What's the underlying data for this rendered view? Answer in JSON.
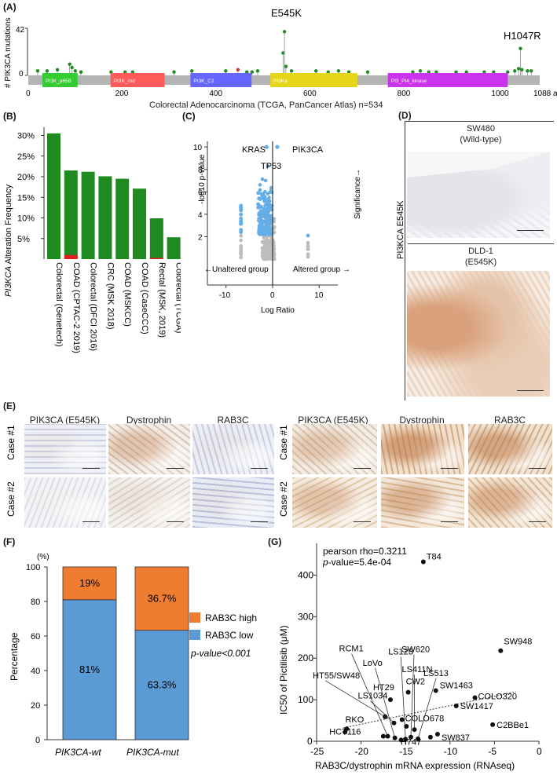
{
  "panelA": {
    "label": "(A)",
    "ylabel": "# PIK3CA mutations",
    "ymax": "42",
    "ymin": "0",
    "hotspot1": "E545K",
    "hotspot2": "H1047R",
    "xticks": [
      "0",
      "200",
      "400",
      "600",
      "800",
      "1000",
      "1088 a.a"
    ],
    "domains": [
      {
        "name": "PI3K_p85B",
        "color": "#33cc33",
        "start": 30,
        "end": 105
      },
      {
        "name": "PI3K_rbd",
        "color": "#ff5a5a",
        "start": 175,
        "end": 290
      },
      {
        "name": "PI3K_C2",
        "color": "#6666ff",
        "start": 345,
        "end": 475
      },
      {
        "name": "PI3Ka",
        "color": "#e6d619",
        "start": 515,
        "end": 700
      },
      {
        "name": "PI3_PI4_kinase",
        "color": "#cc33ee",
        "start": 765,
        "end": 1020
      }
    ],
    "caption": "Colorectal Adenocarcinoma (TCGA, PanCancer Atlas) n=534"
  },
  "panelB": {
    "label": "(B)",
    "ylabel_italic": "PI3KCA",
    "ylabel_rest": " Alteration Frequency",
    "yticks": [
      "5%",
      "10%",
      "15%",
      "20%",
      "25%",
      "30%"
    ]
  },
  "panelC": {
    "label": "(C)",
    "ylabel": "-log10 p-value",
    "xlabel": "Log Ratio",
    "genes": [
      "KRAS",
      "PIK3CA",
      "TP53"
    ],
    "yticks": [
      "2",
      "4",
      "6",
      "8",
      "10"
    ],
    "xticks": [
      "-10",
      "0",
      "10"
    ],
    "left_note": "←Unaltered group",
    "right_note": "Altered group →",
    "sig": "Significance→"
  },
  "panelD": {
    "label": "(D)",
    "top_line1": "SW480",
    "top_line2": "(Wild-type)",
    "bottom_line1": "DLD-1",
    "bottom_line2": "(E545K)",
    "side": "PI3KCA E545K"
  },
  "panelE": {
    "label": "(E)",
    "cols": [
      "PIK3CA (E545K)",
      "Dystrophin",
      "RAB3C"
    ],
    "rows": [
      "Case #1",
      "Case #2"
    ]
  },
  "panelF": {
    "label": "(F)",
    "unit": "(%)",
    "ylabel": "Percentage",
    "yticks": [
      "0",
      "20",
      "40",
      "60",
      "80",
      "100"
    ],
    "legend_high": "RAB3C high",
    "legend_low": "RAB3C low",
    "pval": "p-value<0.001",
    "colors": {
      "high": "#ee7d31",
      "low": "#5b9bd5"
    }
  },
  "panelG": {
    "label": "(G)",
    "pearson": "pearson rho=0.3211",
    "pval_p": "p",
    "pval_rest": "-value=5.4e-04",
    "ylabel": "IC50 of Pictilisib (μM)",
    "xlabel": "RAB3C/dystrophin mRNA expression (RNAseq)",
    "yticks": [
      "0",
      "100",
      "200",
      "300",
      "400"
    ],
    "xticks": [
      "-25",
      "-20",
      "-15",
      "-10",
      "-5",
      "0"
    ]
  },
  "chart_data": [
    {
      "type": "bar",
      "categories": [
        "Colorectal (Genetech)",
        "COAD (CPTAC-2 2019)",
        "Colorectal (DFCI 2016)",
        "CRC (MSK 2018)",
        "COAD (MSKCC)",
        "COAD (CaseCCC)",
        "Rectal (MSK, 2019)",
        "Colorectal (TCGA)"
      ],
      "series": [
        {
          "name": "mutation",
          "values": [
            30.5,
            21.5,
            21.2,
            20.1,
            19.5,
            17.1,
            9.9,
            5.3
          ],
          "color": "#1f8a1f"
        },
        {
          "name": "amplification",
          "values": [
            0,
            1.0,
            0,
            0,
            0,
            0,
            0.3,
            0
          ],
          "color": "#e01e1e"
        }
      ],
      "ylim": [
        0,
        32
      ]
    },
    {
      "type": "scatter",
      "xlim": [
        -14,
        14
      ],
      "ylim": [
        0,
        10.5
      ]
    },
    {
      "type": "bar",
      "categories": [
        "PIK3CA-wt",
        "PIK3CA-mut"
      ],
      "series": [
        {
          "name": "RAB3C low",
          "values": [
            81,
            63.3
          ],
          "labels": [
            "81%",
            "63.3%"
          ]
        },
        {
          "name": "RAB3C high",
          "values": [
            19,
            36.7
          ],
          "labels": [
            "19%",
            "36.7%"
          ]
        }
      ],
      "ylim": [
        0,
        100
      ]
    },
    {
      "type": "scatter",
      "xlim": [
        -25,
        0
      ],
      "ylim": [
        0,
        450
      ],
      "points": [
        {
          "name": "T84",
          "x": -13,
          "y": 432
        },
        {
          "name": "SW948",
          "x": -4.3,
          "y": 218
        },
        {
          "name": "SW1463",
          "x": -11.6,
          "y": 122
        },
        {
          "name": "CW2",
          "x": -14.7,
          "y": 118
        },
        {
          "name": "COLO320",
          "x": -7.2,
          "y": 105
        },
        {
          "name": "HT29",
          "x": -16.7,
          "y": 100
        },
        {
          "name": "SW1417",
          "x": -9.3,
          "y": 85
        },
        {
          "name": "HT55/SW48",
          "x": -17.3,
          "y": 59
        },
        {
          "name": "COLO678",
          "x": -15.4,
          "y": 52
        },
        {
          "name": "LS1034",
          "x": -16.3,
          "y": 44
        },
        {
          "name": "C2BBe1",
          "x": -5.2,
          "y": 40
        },
        {
          "name": "SW837",
          "x": -11.4,
          "y": 17
        },
        {
          "name": "H747",
          "x": -12.2,
          "y": 10
        },
        {
          "name": "RCM1",
          "x": -17.0,
          "y": 12
        },
        {
          "name": "LoVo",
          "x": -16.2,
          "y": 8
        },
        {
          "name": "LS123",
          "x": -15.0,
          "y": 5
        },
        {
          "name": "SW620",
          "x": -14.4,
          "y": 10
        },
        {
          "name": "LS411N",
          "x": -14.0,
          "y": 28
        },
        {
          "name": "LS513",
          "x": -13.6,
          "y": 6
        },
        {
          "name": "RKO",
          "x": -21.6,
          "y": 30
        },
        {
          "name": "HCT116",
          "x": -21.8,
          "y": 22
        },
        {
          "name": "",
          "x": -17.5,
          "y": 12
        },
        {
          "name": "",
          "x": -14.9,
          "y": 36
        },
        {
          "name": "",
          "x": -15.5,
          "y": 3
        }
      ]
    }
  ]
}
